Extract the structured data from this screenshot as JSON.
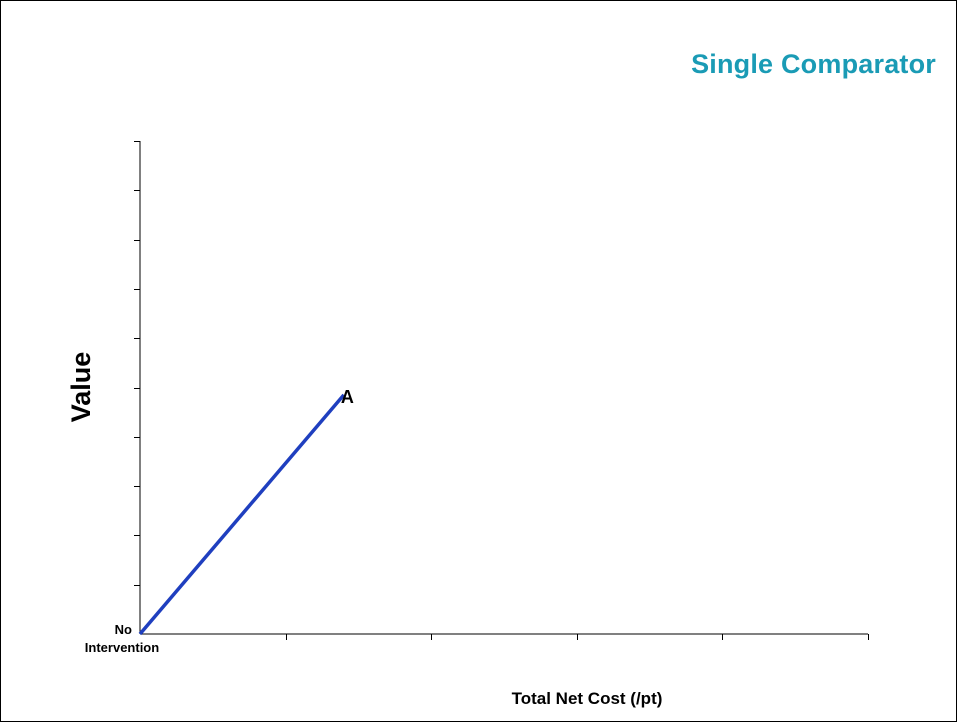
{
  "slide": {
    "title": "Single Comparator",
    "title_color": "#1a9bb5"
  },
  "chart_data": {
    "type": "line",
    "xlabel": "Total Net Cost (/pt)",
    "ylabel": "Value",
    "xlim": [
      0,
      5
    ],
    "ylim": [
      0,
      10
    ],
    "x_tick_count": 5,
    "y_tick_count": 10,
    "tick_labels_shown": false,
    "grid": false,
    "origin_label": [
      "No",
      "Intervention"
    ],
    "series": [
      {
        "color": "#1f3fbf",
        "points": [
          {
            "x": 0,
            "y": 0,
            "label": ""
          },
          {
            "x": 1.4,
            "y": 4.85,
            "label": "A"
          }
        ]
      }
    ]
  }
}
